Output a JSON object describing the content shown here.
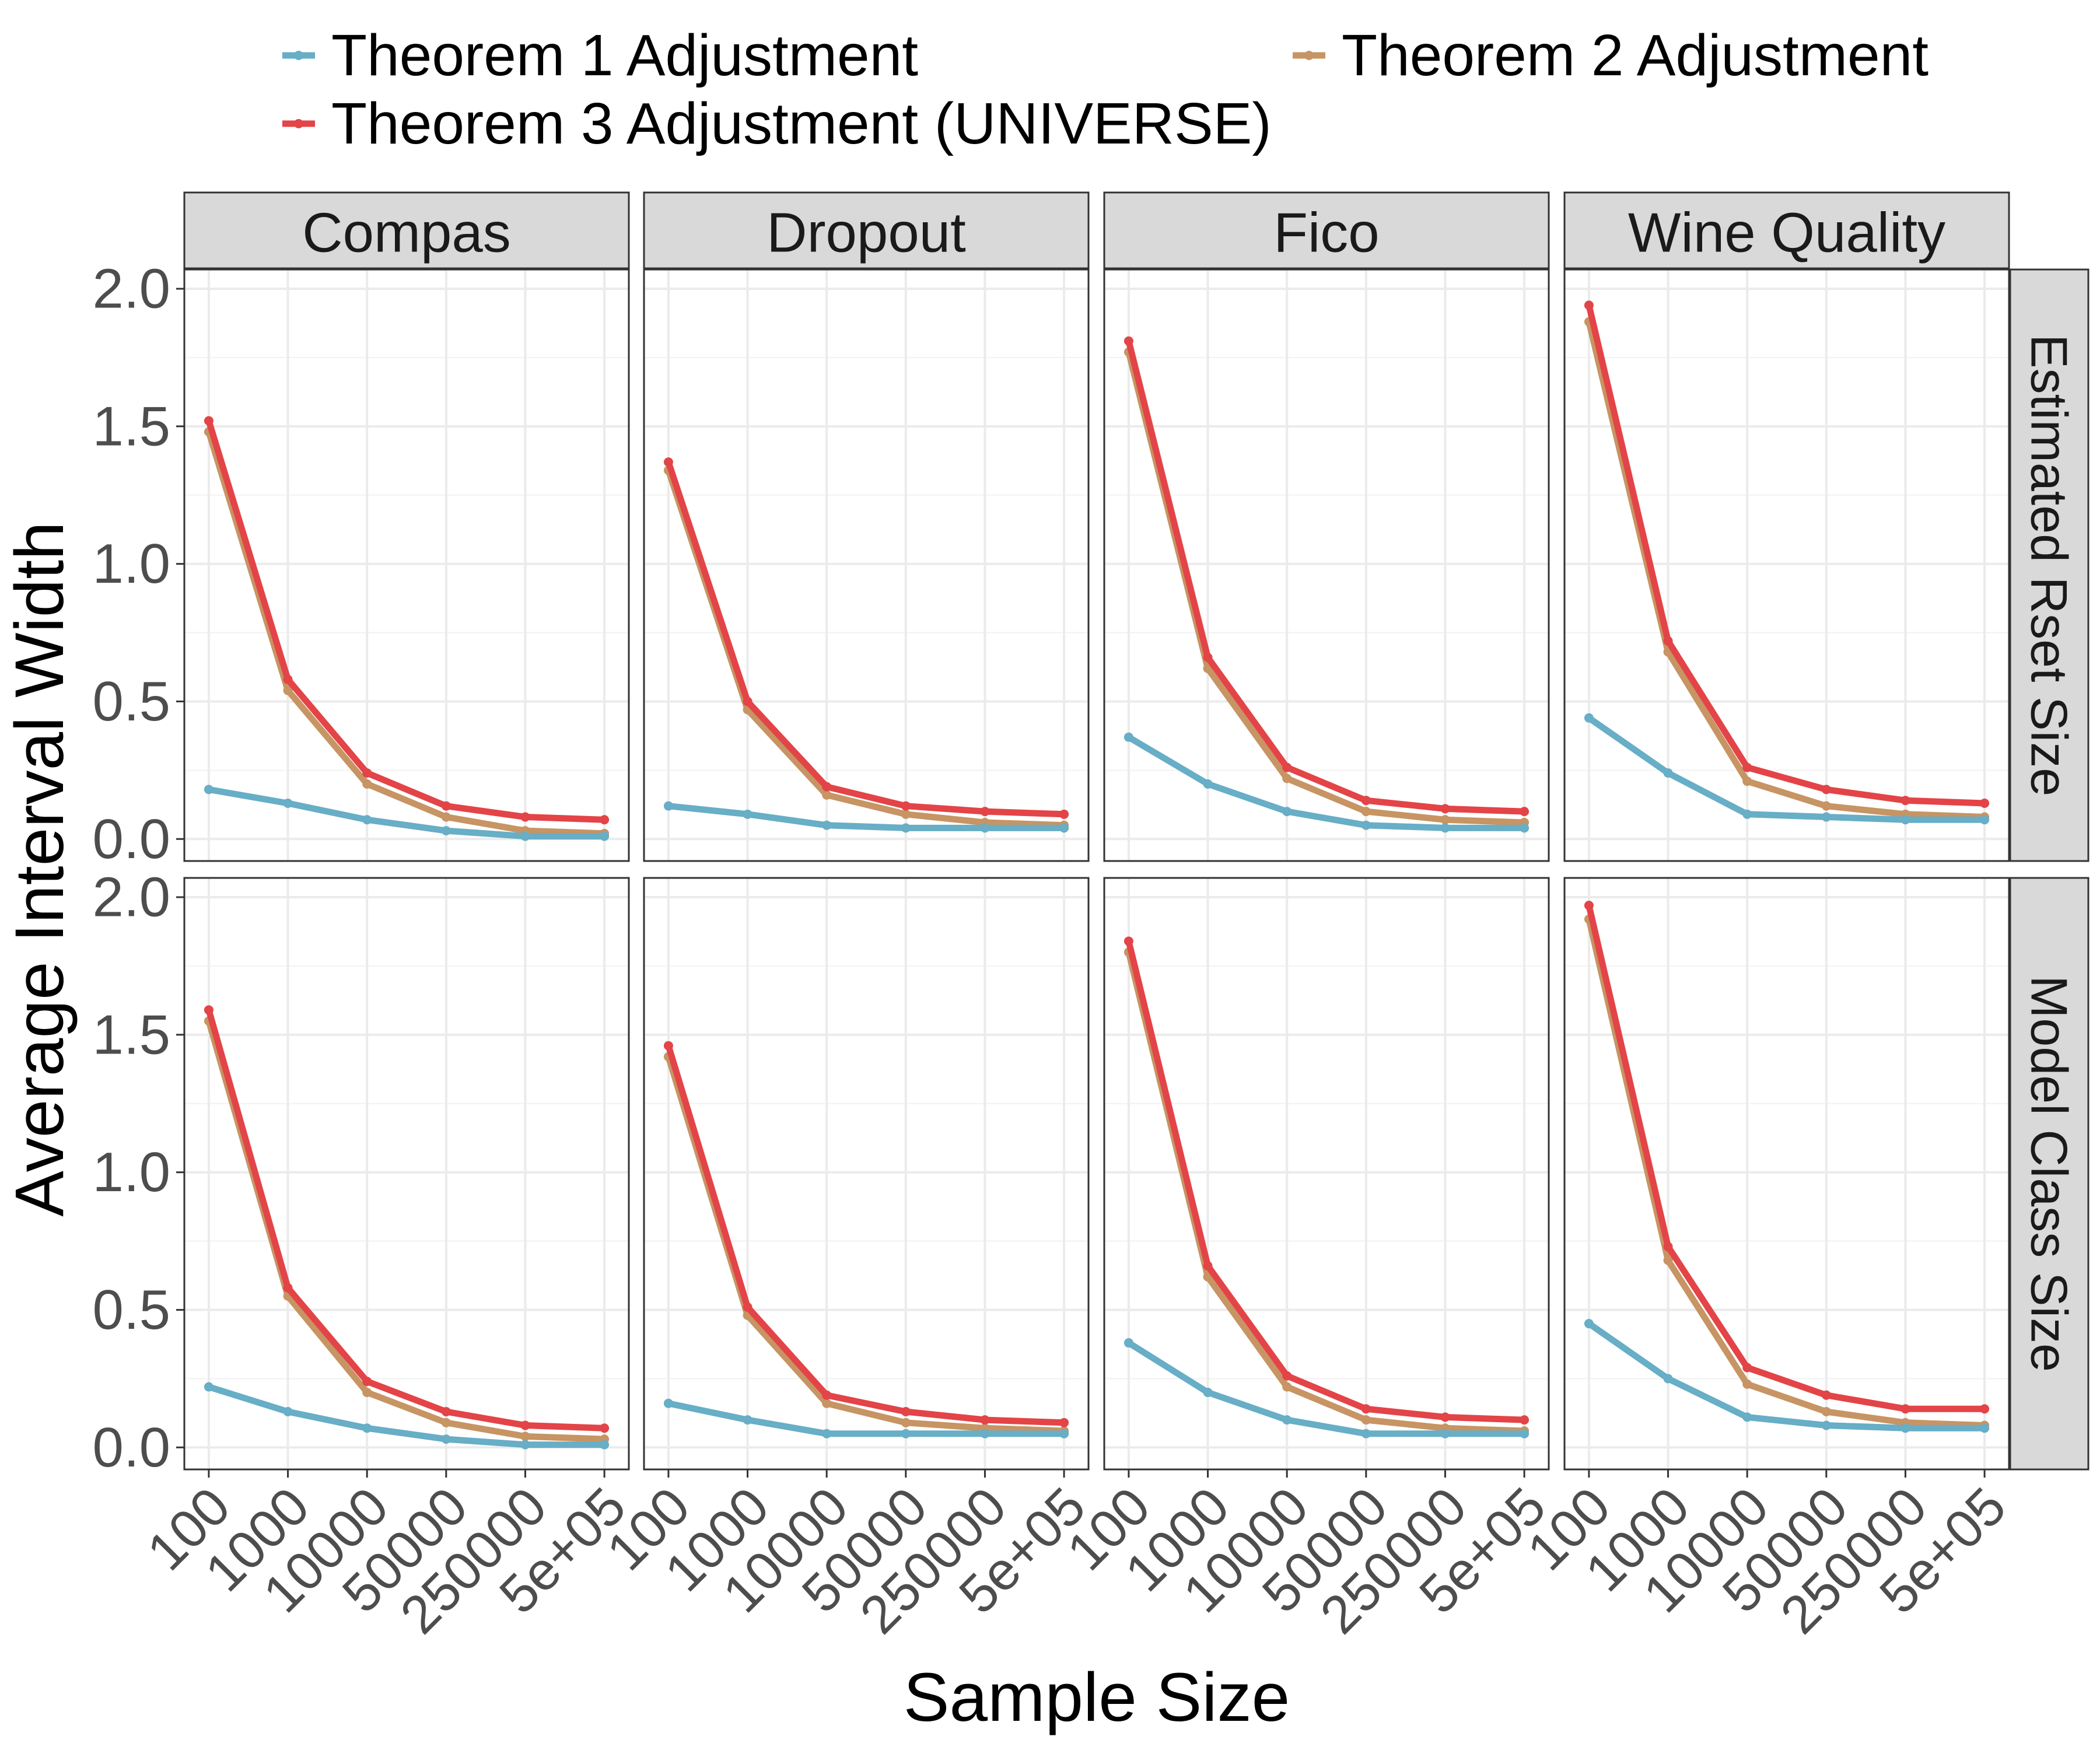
{
  "chart_data": {
    "type": "line",
    "facet_layout": "grid",
    "x_axis_title": "Sample Size",
    "y_axis_title": "Average Interval Width",
    "x_categories": [
      "100",
      "1000",
      "10000",
      "50000",
      "250000",
      "5e+05"
    ],
    "y_ticks": [
      "0.0",
      "0.5",
      "1.0",
      "1.5",
      "2.0"
    ],
    "ylim": [
      -0.08,
      2.07
    ],
    "legend_position": "top",
    "legend": [
      {
        "key": "t1",
        "label": "Theorem 1 Adjustment",
        "color": "#67aec6"
      },
      {
        "key": "t2",
        "label": "Theorem 2 Adjustment",
        "color": "#c79463"
      },
      {
        "key": "t3",
        "label": "Theorem 3 Adjustment (UNIVERSE)",
        "color": "#e34447"
      }
    ],
    "columns": [
      "Compas",
      "Dropout",
      "Fico",
      "Wine Quality"
    ],
    "rows": [
      "Estimated Rset Size",
      "Model Class Size"
    ],
    "panels": [
      {
        "row": 0,
        "col": 0,
        "series": {
          "t1": [
            0.18,
            0.13,
            0.07,
            0.03,
            0.01,
            0.01
          ],
          "t2": [
            1.48,
            0.54,
            0.2,
            0.08,
            0.03,
            0.02
          ],
          "t3": [
            1.52,
            0.58,
            0.24,
            0.12,
            0.08,
            0.07
          ]
        }
      },
      {
        "row": 0,
        "col": 1,
        "series": {
          "t1": [
            0.12,
            0.09,
            0.05,
            0.04,
            0.04,
            0.04
          ],
          "t2": [
            1.34,
            0.47,
            0.16,
            0.09,
            0.06,
            0.05
          ],
          "t3": [
            1.37,
            0.5,
            0.19,
            0.12,
            0.1,
            0.09
          ]
        }
      },
      {
        "row": 0,
        "col": 2,
        "series": {
          "t1": [
            0.37,
            0.2,
            0.1,
            0.05,
            0.04,
            0.04
          ],
          "t2": [
            1.77,
            0.62,
            0.22,
            0.1,
            0.07,
            0.06
          ],
          "t3": [
            1.81,
            0.66,
            0.26,
            0.14,
            0.11,
            0.1
          ]
        }
      },
      {
        "row": 0,
        "col": 3,
        "series": {
          "t1": [
            0.44,
            0.24,
            0.09,
            0.08,
            0.07,
            0.07
          ],
          "t2": [
            1.88,
            0.68,
            0.21,
            0.12,
            0.09,
            0.08
          ],
          "t3": [
            1.94,
            0.72,
            0.26,
            0.18,
            0.14,
            0.13
          ]
        }
      },
      {
        "row": 1,
        "col": 0,
        "series": {
          "t1": [
            0.22,
            0.13,
            0.07,
            0.03,
            0.01,
            0.01
          ],
          "t2": [
            1.55,
            0.55,
            0.2,
            0.09,
            0.04,
            0.03
          ],
          "t3": [
            1.59,
            0.58,
            0.24,
            0.13,
            0.08,
            0.07
          ]
        }
      },
      {
        "row": 1,
        "col": 1,
        "series": {
          "t1": [
            0.16,
            0.1,
            0.05,
            0.05,
            0.05,
            0.05
          ],
          "t2": [
            1.42,
            0.48,
            0.16,
            0.09,
            0.07,
            0.06
          ],
          "t3": [
            1.46,
            0.51,
            0.19,
            0.13,
            0.1,
            0.09
          ]
        }
      },
      {
        "row": 1,
        "col": 2,
        "series": {
          "t1": [
            0.38,
            0.2,
            0.1,
            0.05,
            0.05,
            0.05
          ],
          "t2": [
            1.8,
            0.62,
            0.22,
            0.1,
            0.07,
            0.06
          ],
          "t3": [
            1.84,
            0.66,
            0.26,
            0.14,
            0.11,
            0.1
          ]
        }
      },
      {
        "row": 1,
        "col": 3,
        "series": {
          "t1": [
            0.45,
            0.25,
            0.11,
            0.08,
            0.07,
            0.07
          ],
          "t2": [
            1.92,
            0.68,
            0.23,
            0.13,
            0.09,
            0.08
          ],
          "t3": [
            1.97,
            0.73,
            0.29,
            0.19,
            0.14,
            0.14
          ]
        }
      }
    ]
  }
}
